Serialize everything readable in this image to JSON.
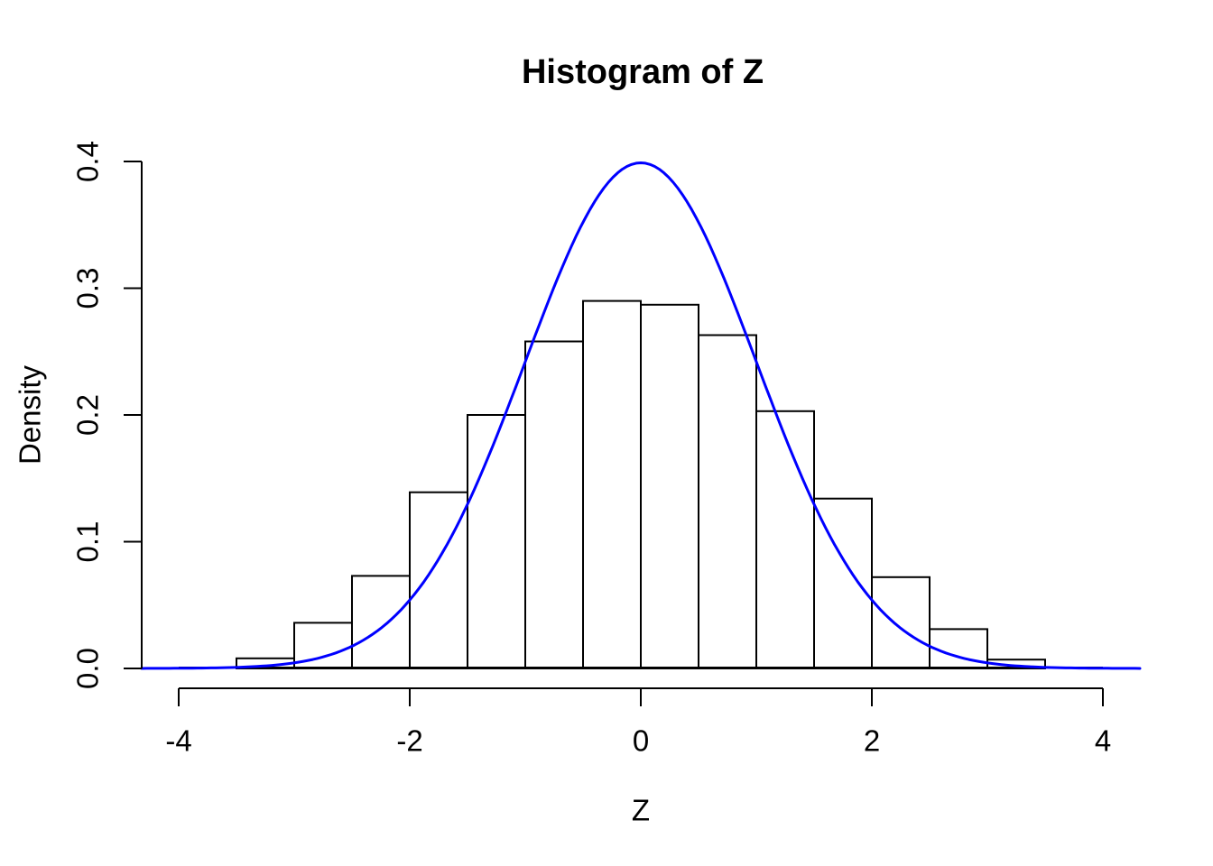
{
  "figure": {
    "background": "#FFFFFF",
    "text_color": "#000000"
  },
  "chart_data": {
    "type": "bar",
    "subtype": "histogram-with-density-overlay",
    "title": "Histogram of Z",
    "xlabel": "Z",
    "ylabel": "Density",
    "x_ticks": [
      -4,
      -2,
      0,
      2,
      4
    ],
    "x_tick_labels": [
      "-4",
      "-2",
      "0",
      "2",
      "4"
    ],
    "y_ticks": [
      0.0,
      0.1,
      0.2,
      0.3,
      0.4
    ],
    "y_tick_labels": [
      "0.0",
      "0.1",
      "0.2",
      "0.3",
      "0.4"
    ],
    "xlim": [
      -4.32,
      4.32
    ],
    "ylim": [
      0,
      0.4
    ],
    "grid": false,
    "legend": false,
    "bin_edges": [
      -3.5,
      -3.0,
      -2.5,
      -2.0,
      -1.5,
      -1.0,
      -0.5,
      0.0,
      0.5,
      1.0,
      1.5,
      2.0,
      2.5,
      3.0,
      3.5
    ],
    "densities": [
      0.008,
      0.036,
      0.073,
      0.139,
      0.2,
      0.258,
      0.29,
      0.287,
      0.263,
      0.203,
      0.134,
      0.072,
      0.031,
      0.007
    ],
    "bar_fill": "#FFFFFF",
    "bar_stroke": "#000000",
    "axis_color": "#000000",
    "zero_line": {
      "from_x": -4,
      "to_x": 4,
      "color": "#000000"
    },
    "overlay_curve": {
      "name": "standard-normal-density",
      "distribution": "normal",
      "mean": 0,
      "sd": 1,
      "peak_density": 0.3989,
      "x_range": [
        -4.32,
        4.32
      ],
      "color": "#0000FF"
    }
  }
}
